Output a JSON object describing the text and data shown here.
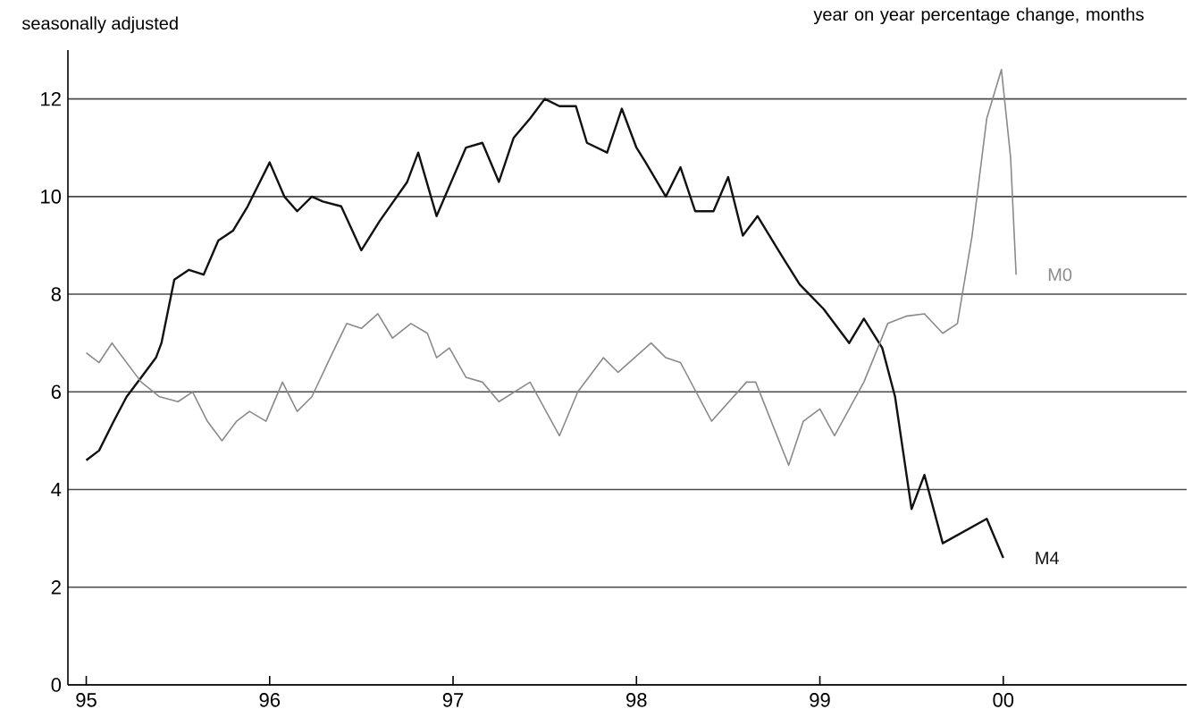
{
  "chart_data": {
    "type": "line",
    "subtitle": "seasonally adjusted",
    "annotations": [
      "year on year percentage change, months"
    ],
    "xlim": [
      1994.9,
      2001.0
    ],
    "ylim": [
      0,
      13
    ],
    "xticks": [
      {
        "value": 1995,
        "label": "95"
      },
      {
        "value": 1996,
        "label": "96"
      },
      {
        "value": 1997,
        "label": "97"
      },
      {
        "value": 1998,
        "label": "98"
      },
      {
        "value": 1999,
        "label": "99"
      },
      {
        "value": 2000,
        "label": "00"
      }
    ],
    "yticks": [
      0,
      2,
      4,
      6,
      8,
      10,
      12
    ],
    "grid": "y",
    "marker": "none",
    "line_style": "solid",
    "series": [
      {
        "name": "M4",
        "color": "#111111",
        "x": [
          1995.0,
          1995.07,
          1995.15,
          1995.22,
          1995.3,
          1995.38,
          1995.41,
          1995.48,
          1995.56,
          1995.64,
          1995.72,
          1995.8,
          1995.88,
          1996.0,
          1996.08,
          1996.15,
          1996.23,
          1996.29,
          1996.39,
          1996.5,
          1996.6,
          1996.75,
          1996.81,
          1996.91,
          1997.07,
          1997.16,
          1997.25,
          1997.33,
          1997.42,
          1997.5,
          1997.58,
          1997.67,
          1997.73,
          1997.84,
          1997.92,
          1998.0,
          1998.05,
          1998.16,
          1998.24,
          1998.32,
          1998.42,
          1998.5,
          1998.58,
          1998.66,
          1998.79,
          1998.89,
          1999.02,
          1999.16,
          1999.24,
          1999.34,
          1999.41,
          1999.5,
          1999.57,
          1999.67,
          1999.91,
          2000.0
        ],
        "values": [
          4.6,
          4.8,
          5.4,
          5.9,
          6.3,
          6.7,
          7.0,
          8.3,
          8.5,
          8.4,
          9.1,
          9.3,
          9.8,
          10.7,
          10.0,
          9.7,
          10.0,
          9.9,
          9.8,
          8.9,
          9.5,
          10.3,
          10.9,
          9.6,
          11.0,
          11.1,
          10.3,
          11.2,
          11.6,
          12.0,
          11.85,
          11.85,
          11.1,
          10.9,
          11.8,
          11.0,
          10.7,
          10.0,
          10.6,
          9.7,
          9.7,
          10.4,
          9.2,
          9.6,
          8.8,
          8.2,
          7.7,
          7.0,
          7.5,
          6.9,
          5.9,
          3.6,
          4.3,
          2.9,
          3.4,
          2.6
        ]
      },
      {
        "name": "M0",
        "color": "#8a8a8a",
        "x": [
          1995.0,
          1995.07,
          1995.14,
          1995.3,
          1995.4,
          1995.5,
          1995.58,
          1995.66,
          1995.74,
          1995.82,
          1995.89,
          1995.98,
          1996.07,
          1996.15,
          1996.23,
          1996.33,
          1996.42,
          1996.5,
          1996.59,
          1996.67,
          1996.77,
          1996.86,
          1996.91,
          1996.98,
          1997.07,
          1997.16,
          1997.25,
          1997.42,
          1997.58,
          1997.68,
          1997.82,
          1997.9,
          1998.08,
          1998.16,
          1998.24,
          1998.41,
          1998.6,
          1998.65,
          1998.83,
          1998.91,
          1999.0,
          1999.08,
          1999.24,
          1999.37,
          1999.47,
          1999.57,
          1999.67,
          1999.75,
          1999.83,
          1999.91,
          1999.99,
          2000.04,
          2000.07
        ],
        "values": [
          6.8,
          6.6,
          7.0,
          6.2,
          5.9,
          5.8,
          6.0,
          5.4,
          5.0,
          5.4,
          5.6,
          5.4,
          6.2,
          5.6,
          5.9,
          6.7,
          7.4,
          7.3,
          7.6,
          7.1,
          7.4,
          7.2,
          6.7,
          6.9,
          6.3,
          6.2,
          5.8,
          6.2,
          5.1,
          6.0,
          6.7,
          6.4,
          7.0,
          6.7,
          6.6,
          5.4,
          6.2,
          6.2,
          4.5,
          5.4,
          5.65,
          5.1,
          6.2,
          7.4,
          7.55,
          7.6,
          7.2,
          7.4,
          9.2,
          11.6,
          12.6,
          10.8,
          8.4
        ]
      }
    ]
  }
}
